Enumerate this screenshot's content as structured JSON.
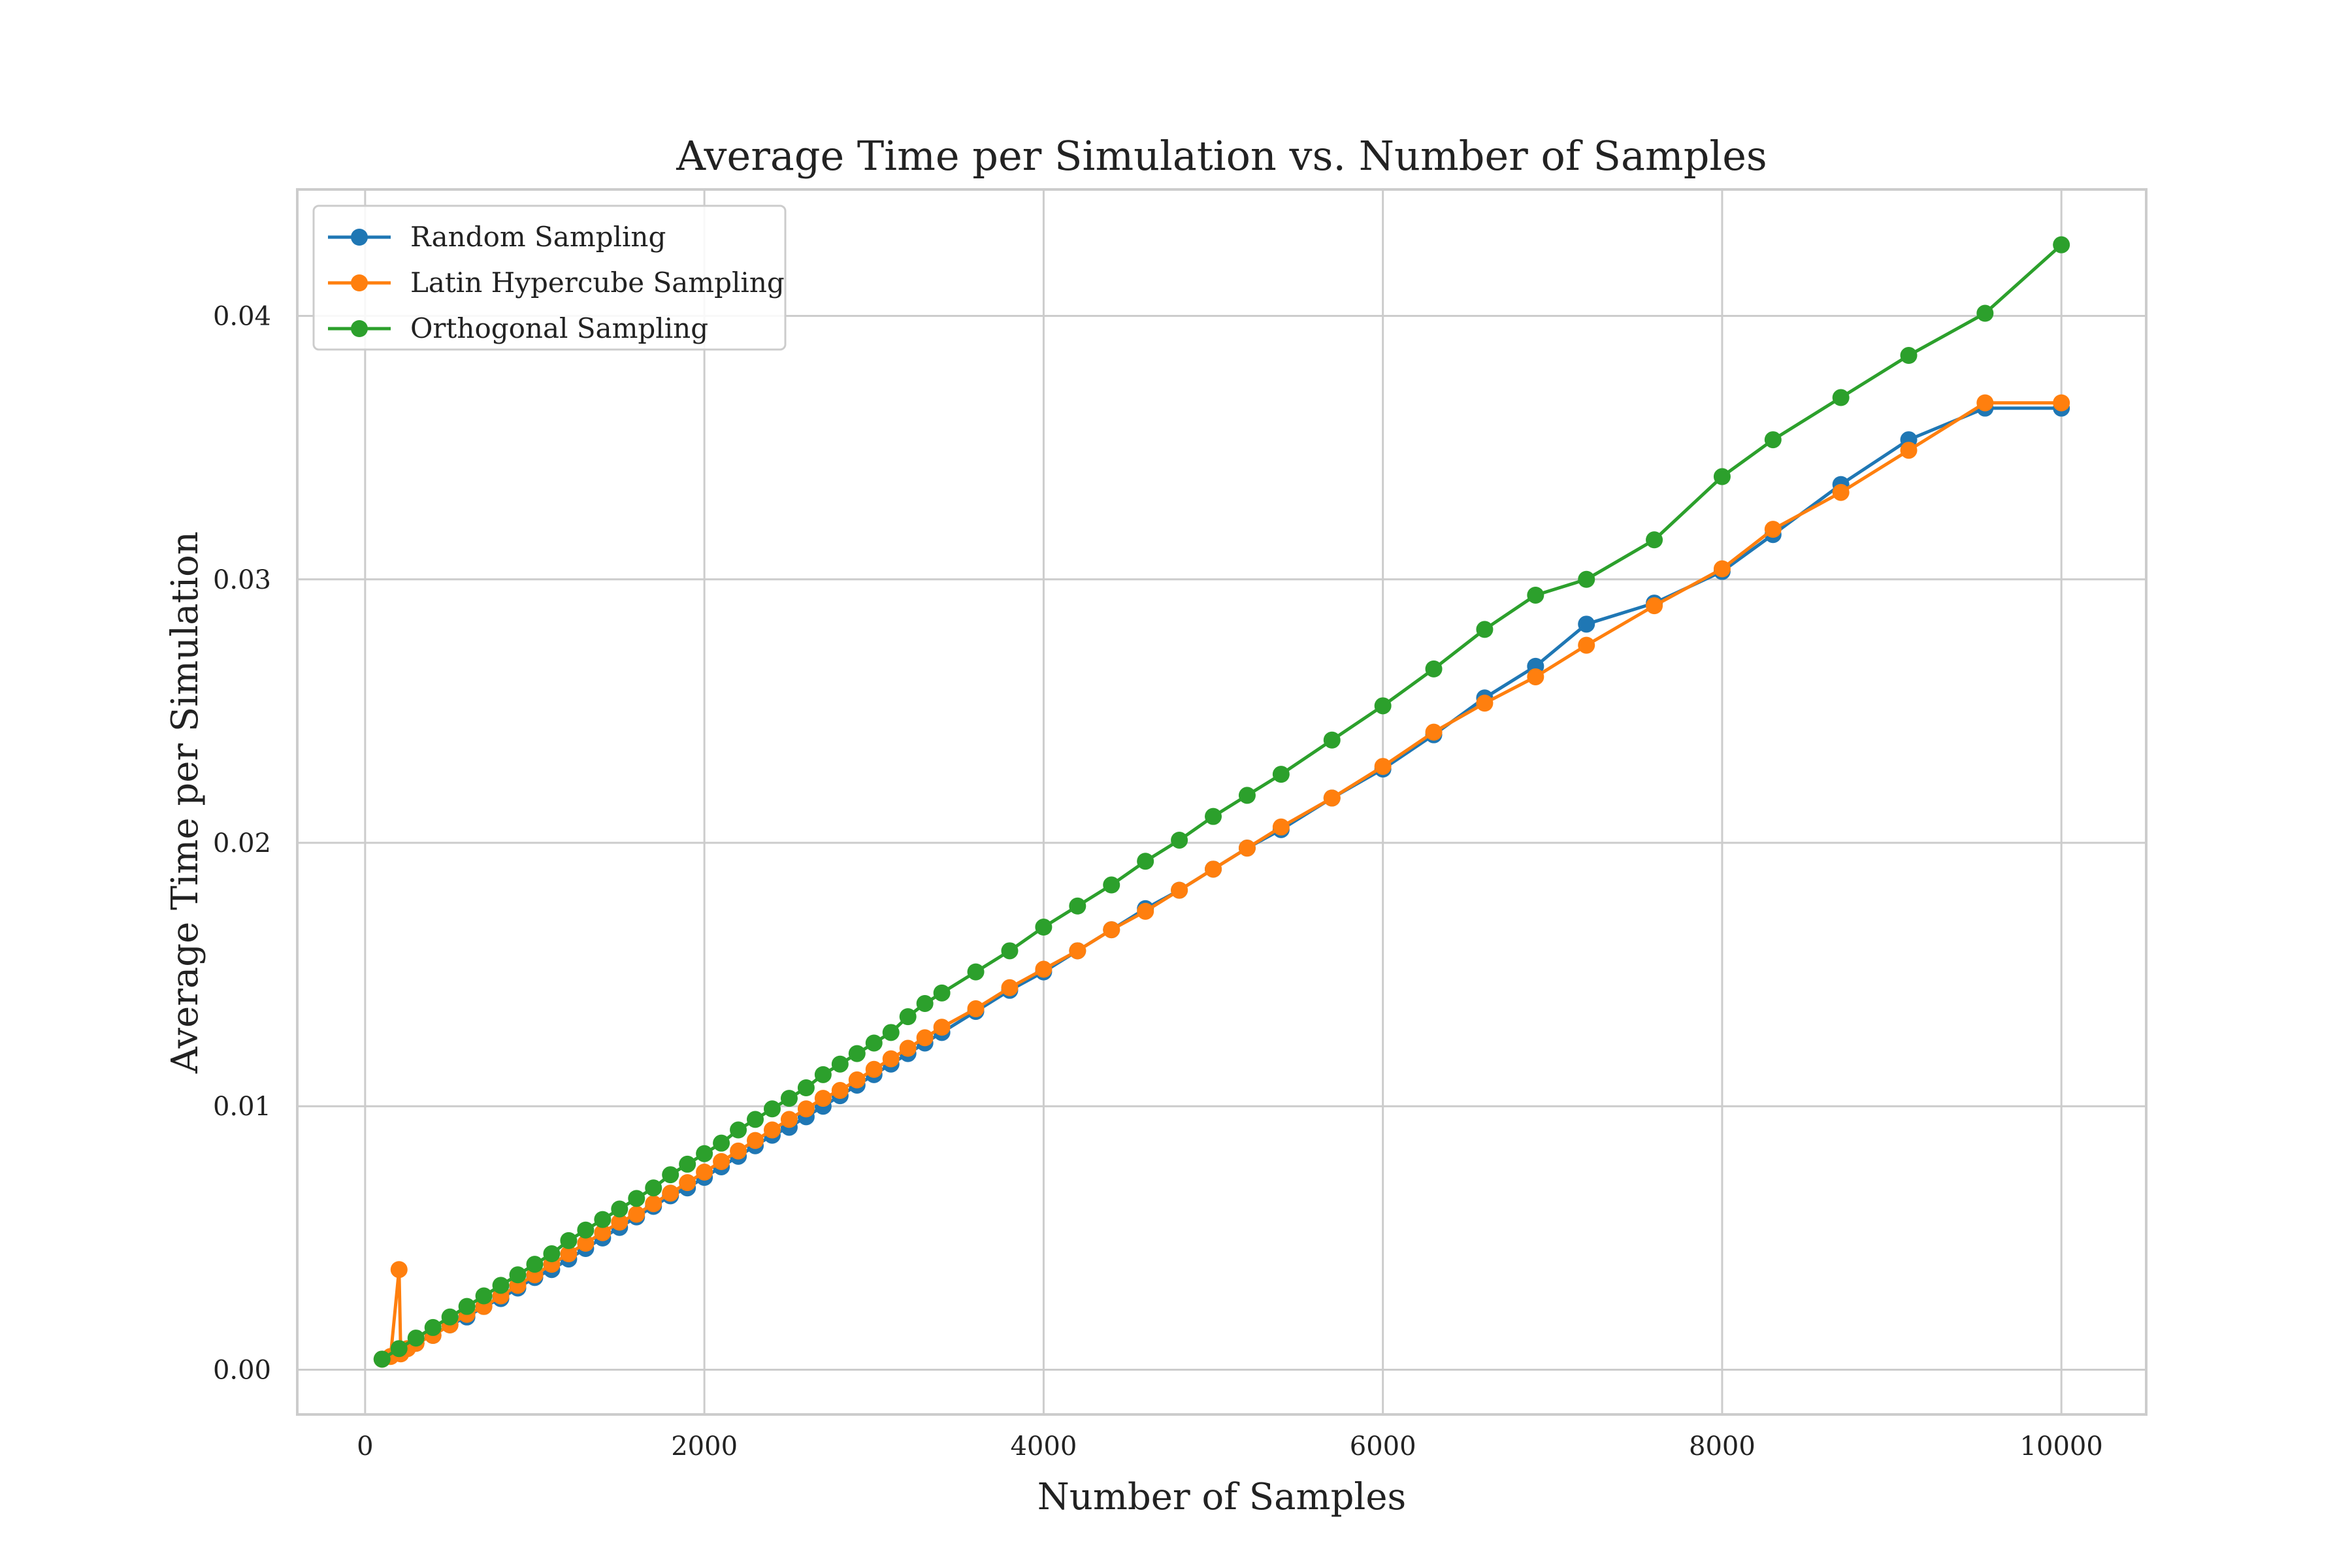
{
  "chart_data": {
    "type": "line",
    "title": "Average Time per Simulation vs. Number of Samples",
    "xlabel": "Number of Samples",
    "ylabel": "Average Time per Simulation",
    "xlim": [
      -400,
      10500
    ],
    "ylim": [
      -0.0017,
      0.0448
    ],
    "xticks": [
      0,
      2000,
      4000,
      6000,
      8000,
      10000
    ],
    "xtick_labels": [
      "0",
      "2000",
      "4000",
      "6000",
      "8000",
      "10000"
    ],
    "yticks": [
      0.0,
      0.01,
      0.02,
      0.03,
      0.04
    ],
    "ytick_labels": [
      "0.00",
      "0.01",
      "0.02",
      "0.03",
      "0.04"
    ],
    "grid": true,
    "legend_position": "top-left",
    "series": [
      {
        "name": "Random Sampling",
        "color": "#1f77b4",
        "x": [
          100,
          200,
          300,
          400,
          500,
          600,
          700,
          800,
          900,
          1000,
          1100,
          1200,
          1300,
          1400,
          1500,
          1600,
          1700,
          1800,
          1900,
          2000,
          2100,
          2200,
          2300,
          2400,
          2500,
          2600,
          2700,
          2800,
          2900,
          3000,
          3100,
          3200,
          3300,
          3400,
          3600,
          3800,
          4000,
          4200,
          4400,
          4600,
          4800,
          5000,
          5200,
          5400,
          5700,
          6000,
          6300,
          6600,
          6900,
          7200,
          7600,
          8000,
          8300,
          8700,
          9100,
          9550,
          10000
        ],
        "y": [
          0.0004,
          0.0007,
          0.001,
          0.0013,
          0.0017,
          0.002,
          0.0024,
          0.0027,
          0.0031,
          0.0035,
          0.0038,
          0.0042,
          0.0046,
          0.005,
          0.0054,
          0.0058,
          0.0062,
          0.0066,
          0.0069,
          0.0073,
          0.0077,
          0.0081,
          0.0085,
          0.0089,
          0.0092,
          0.0096,
          0.01,
          0.0104,
          0.0108,
          0.0112,
          0.0116,
          0.012,
          0.0124,
          0.0128,
          0.0136,
          0.0144,
          0.0151,
          0.0159,
          0.0167,
          0.0175,
          0.0182,
          0.019,
          0.0198,
          0.0205,
          0.0217,
          0.0228,
          0.0241,
          0.0255,
          0.0267,
          0.0283,
          0.0291,
          0.0303,
          0.0317,
          0.0336,
          0.0353,
          0.0365,
          0.0365
        ]
      },
      {
        "name": "Latin Hypercube Sampling",
        "color": "#ff7f0e",
        "x": [
          100,
          150,
          200,
          210,
          250,
          300,
          400,
          500,
          600,
          700,
          800,
          900,
          1000,
          1100,
          1200,
          1300,
          1400,
          1500,
          1600,
          1700,
          1800,
          1900,
          2000,
          2100,
          2200,
          2300,
          2400,
          2500,
          2600,
          2700,
          2800,
          2900,
          3000,
          3100,
          3200,
          3300,
          3400,
          3600,
          3800,
          4000,
          4200,
          4400,
          4600,
          4800,
          5000,
          5200,
          5400,
          5700,
          6000,
          6300,
          6600,
          6900,
          7200,
          7600,
          8000,
          8300,
          8700,
          9100,
          9550,
          10000
        ],
        "y": [
          0.0004,
          0.0005,
          0.0038,
          0.0006,
          0.0008,
          0.001,
          0.0013,
          0.0017,
          0.0021,
          0.0024,
          0.0028,
          0.0032,
          0.0036,
          0.004,
          0.0044,
          0.0048,
          0.0052,
          0.0056,
          0.0059,
          0.0063,
          0.0067,
          0.0071,
          0.0075,
          0.0079,
          0.0083,
          0.0087,
          0.0091,
          0.0095,
          0.0099,
          0.0103,
          0.0106,
          0.011,
          0.0114,
          0.0118,
          0.0122,
          0.0126,
          0.013,
          0.0137,
          0.0145,
          0.0152,
          0.0159,
          0.0167,
          0.0174,
          0.0182,
          0.019,
          0.0198,
          0.0206,
          0.0217,
          0.0229,
          0.0242,
          0.0253,
          0.0263,
          0.0275,
          0.029,
          0.0304,
          0.0319,
          0.0333,
          0.0349,
          0.0367,
          0.0367
        ]
      },
      {
        "name": "Orthogonal Sampling",
        "color": "#2ca02c",
        "x": [
          100,
          200,
          300,
          400,
          500,
          600,
          700,
          800,
          900,
          1000,
          1100,
          1200,
          1300,
          1400,
          1500,
          1600,
          1700,
          1800,
          1900,
          2000,
          2100,
          2200,
          2300,
          2400,
          2500,
          2600,
          2700,
          2800,
          2900,
          3000,
          3100,
          3200,
          3300,
          3400,
          3600,
          3800,
          4000,
          4200,
          4400,
          4600,
          4800,
          5000,
          5200,
          5400,
          5700,
          6000,
          6300,
          6600,
          6900,
          7200,
          7600,
          8000,
          8300,
          8700,
          9100,
          9550,
          10000
        ],
        "y": [
          0.0004,
          0.0008,
          0.0012,
          0.0016,
          0.002,
          0.0024,
          0.0028,
          0.0032,
          0.0036,
          0.004,
          0.0044,
          0.0049,
          0.0053,
          0.0057,
          0.0061,
          0.0065,
          0.0069,
          0.0074,
          0.0078,
          0.0082,
          0.0086,
          0.0091,
          0.0095,
          0.0099,
          0.0103,
          0.0107,
          0.0112,
          0.0116,
          0.012,
          0.0124,
          0.0128,
          0.0134,
          0.0139,
          0.0143,
          0.0151,
          0.0159,
          0.0168,
          0.0176,
          0.0184,
          0.0193,
          0.0201,
          0.021,
          0.0218,
          0.0226,
          0.0239,
          0.0252,
          0.0266,
          0.0281,
          0.0294,
          0.03,
          0.0315,
          0.0339,
          0.0353,
          0.0369,
          0.0385,
          0.0401,
          0.0427
        ]
      }
    ]
  }
}
